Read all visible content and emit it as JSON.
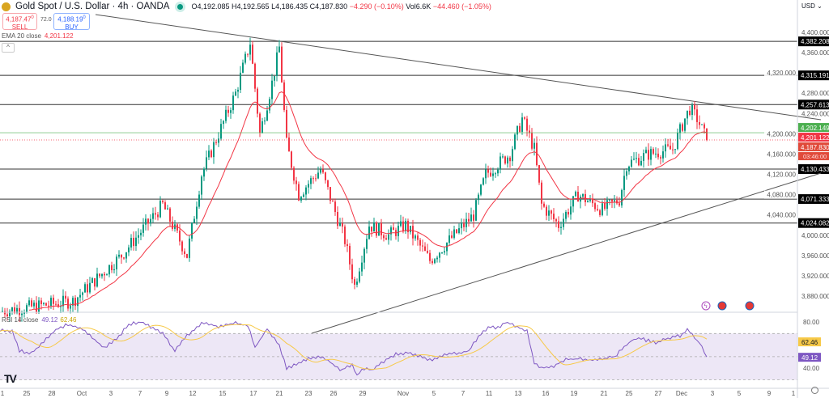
{
  "header": {
    "symbol_title": "Gold Spot / U.S. Dollar · 4h · OANDA",
    "open": "O4,192.085",
    "high": "H4,192.565",
    "low": "L4,186.435",
    "close": "C4,187.830",
    "change": "−4.290 (−0.10%)",
    "volume": "Vol6.6K",
    "volume_change": "−44.460 (−1.05%)",
    "market_status_color": "#089981"
  },
  "trade": {
    "sell_price": "4,187.47",
    "sell_sup": "0",
    "sell_label": "SELL",
    "spread": "72.0",
    "buy_price": "4,188.19",
    "buy_sup": "0",
    "buy_label": "BUY"
  },
  "indicators": {
    "ema_label": "EMA 20 close",
    "ema_value": "4,201.122",
    "rsi_label": "RSI 14 close",
    "rsi_value": "49.12",
    "rsi_ma_value": "62.46"
  },
  "price_axis": {
    "currency": "USD",
    "ticks": [
      "4,400.000",
      "4,360.000",
      "4,320.000",
      "4,280.000",
      "4,240.000",
      "4,200.000",
      "4,160.000",
      "4,120.000",
      "4,080.000",
      "4,040.000",
      "4,000.000",
      "3,960.000",
      "3,920.000",
      "3,880.000"
    ],
    "levels": [
      "4,382.208",
      "4,315.191",
      "4,257.613",
      "4,130.433",
      "4,071.333",
      "4,024.082"
    ],
    "ask_tag": "4,202.149",
    "ema_tag": "4,201.122",
    "last_tag": "4,187.830",
    "countdown": "03:46:00"
  },
  "rsi_axis": {
    "ticks": [
      "80.00",
      "40.00"
    ],
    "ma_tag": "62.46",
    "rsi_tag": "49.12"
  },
  "time_axis": {
    "labels": [
      "1",
      "25",
      "28",
      "Oct",
      "3",
      "7",
      "9",
      "12",
      "15",
      "17",
      "21",
      "23",
      "26",
      "29",
      "Nov",
      "5",
      "7",
      "11",
      "13",
      "16",
      "19",
      "21",
      "25",
      "27",
      "Dec",
      "3",
      "5",
      "9",
      "1"
    ]
  },
  "colors": {
    "up": "#089981",
    "down": "#f23645",
    "ema": "#f23645",
    "rsi": "#7e57c2",
    "rsi_ma": "#f7c948",
    "rsi_band": "#ede7f6",
    "ask_line": "#4caf50",
    "level_tag_bg": "#000000"
  },
  "icons": [
    "tradingview-logo-icon",
    "lightning-event-icon",
    "us-flag-event-icon",
    "us-flag-event-icon",
    "settings-gear-icon",
    "chevron-up-icon"
  ],
  "chart_data": {
    "type": "candlestick",
    "price_range": [
      3860,
      4410
    ],
    "horizontal_levels": [
      4382.208,
      4315.191,
      4257.613,
      4130.433,
      4071.333,
      4024.082
    ],
    "last_price": 4187.83,
    "ema_period": 20,
    "price_path": [
      [
        0,
        3850
      ],
      [
        30,
        3870
      ],
      [
        50,
        3960
      ],
      [
        67,
        4060
      ],
      [
        77,
        3960
      ],
      [
        83,
        4120
      ],
      [
        97,
        4280
      ],
      [
        103,
        4380
      ],
      [
        107,
        4200
      ],
      [
        112,
        4300
      ],
      [
        115,
        4370
      ],
      [
        118,
        4180
      ],
      [
        123,
        4080
      ],
      [
        132,
        4130
      ],
      [
        137,
        4060
      ],
      [
        142,
        3990
      ],
      [
        146,
        3900
      ],
      [
        152,
        4020
      ],
      [
        160,
        4000
      ],
      [
        167,
        4020
      ],
      [
        177,
        3950
      ],
      [
        187,
        4000
      ],
      [
        195,
        4040
      ],
      [
        200,
        4120
      ],
      [
        210,
        4160
      ],
      [
        215,
        4230
      ],
      [
        220,
        4170
      ],
      [
        223,
        4060
      ],
      [
        230,
        4020
      ],
      [
        238,
        4080
      ],
      [
        248,
        4050
      ],
      [
        255,
        4070
      ],
      [
        258,
        4140
      ],
      [
        267,
        4160
      ],
      [
        277,
        4170
      ],
      [
        282,
        4230
      ],
      [
        284,
        4250
      ],
      [
        287,
        4230
      ],
      [
        291,
        4188
      ]
    ],
    "rsi_range": [
      20,
      90
    ],
    "rsi_levels": [
      70,
      50,
      30
    ],
    "rsi_path": [
      [
        0,
        73
      ],
      [
        5,
        72
      ],
      [
        8,
        55
      ],
      [
        13,
        53
      ],
      [
        20,
        67
      ],
      [
        23,
        73
      ],
      [
        28,
        78
      ],
      [
        33,
        75
      ],
      [
        38,
        66
      ],
      [
        43,
        58
      ],
      [
        48,
        65
      ],
      [
        53,
        78
      ],
      [
        58,
        80
      ],
      [
        67,
        70
      ],
      [
        72,
        55
      ],
      [
        77,
        68
      ],
      [
        83,
        79
      ],
      [
        90,
        76
      ],
      [
        97,
        79
      ],
      [
        102,
        77
      ],
      [
        105,
        58
      ],
      [
        110,
        74
      ],
      [
        115,
        60
      ],
      [
        118,
        40
      ],
      [
        122,
        43
      ],
      [
        127,
        48
      ],
      [
        132,
        50
      ],
      [
        135,
        47
      ],
      [
        140,
        38
      ],
      [
        145,
        43
      ],
      [
        147,
        34
      ],
      [
        150,
        40
      ],
      [
        153,
        38
      ],
      [
        158,
        46
      ],
      [
        163,
        52
      ],
      [
        168,
        53
      ],
      [
        173,
        50
      ],
      [
        177,
        47
      ],
      [
        182,
        51
      ],
      [
        188,
        53
      ],
      [
        193,
        55
      ],
      [
        198,
        70
      ],
      [
        202,
        76
      ],
      [
        205,
        75
      ],
      [
        208,
        80
      ],
      [
        213,
        76
      ],
      [
        217,
        72
      ],
      [
        220,
        45
      ],
      [
        223,
        40
      ],
      [
        228,
        42
      ],
      [
        233,
        48
      ],
      [
        238,
        48
      ],
      [
        243,
        47
      ],
      [
        247,
        48
      ],
      [
        253,
        50
      ],
      [
        260,
        64
      ],
      [
        263,
        66
      ],
      [
        270,
        62
      ],
      [
        275,
        66
      ],
      [
        280,
        68
      ],
      [
        283,
        74
      ],
      [
        286,
        66
      ],
      [
        288,
        62
      ],
      [
        291,
        49
      ]
    ]
  }
}
